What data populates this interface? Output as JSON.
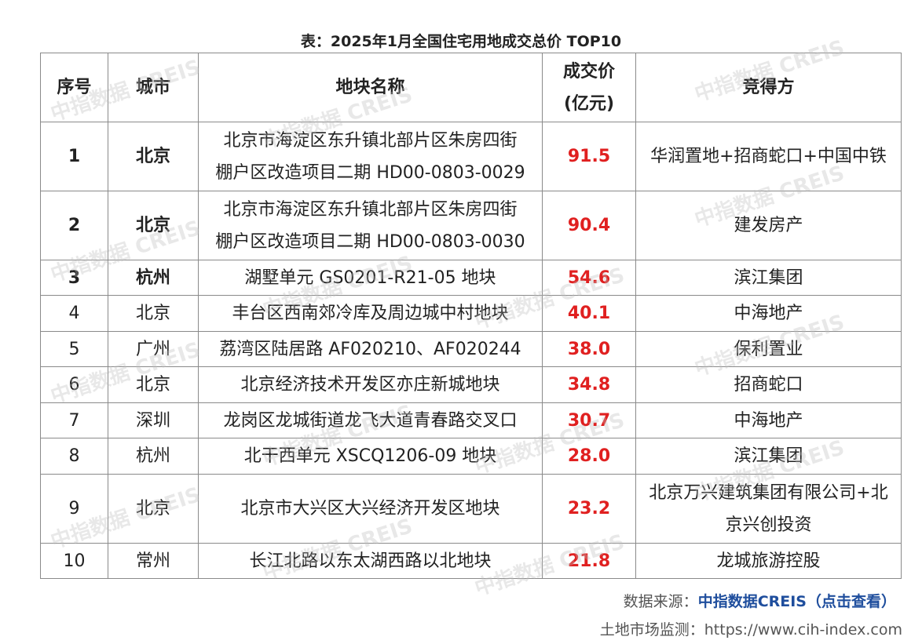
{
  "title": "表：2025年1月全国住宅用地成交总价 TOP10",
  "headers": {
    "no": "序号",
    "city": "城市",
    "name": "地块名称",
    "price_line1": "成交价",
    "price_line2": "(亿元)",
    "buyer": "竞得方"
  },
  "rows": [
    {
      "no": "1",
      "city": "北京",
      "name_line1": "北京市海淀区东升镇北部片区朱房四街",
      "name_line2": "棚户区改造项目二期 HD00-0803-0029",
      "price": "91.5",
      "buyer_line1": "华润置地+招商蛇口+中国中铁",
      "buyer_line2": ""
    },
    {
      "no": "2",
      "city": "北京",
      "name_line1": "北京市海淀区东升镇北部片区朱房四街",
      "name_line2": "棚户区改造项目二期 HD00-0803-0030",
      "price": "90.4",
      "buyer_line1": "建发房产",
      "buyer_line2": ""
    },
    {
      "no": "3",
      "city": "杭州",
      "name_line1": "湖墅单元 GS0201-R21-05 地块",
      "name_line2": "",
      "price": "54.6",
      "buyer_line1": "滨江集团",
      "buyer_line2": ""
    },
    {
      "no": "4",
      "city": "北京",
      "name_line1": "丰台区西南郊冷库及周边城中村地块",
      "name_line2": "",
      "price": "40.1",
      "buyer_line1": "中海地产",
      "buyer_line2": ""
    },
    {
      "no": "5",
      "city": "广州",
      "name_line1": "荔湾区陆居路 AF020210、AF020244",
      "name_line2": "",
      "price": "38.0",
      "buyer_line1": "保利置业",
      "buyer_line2": ""
    },
    {
      "no": "6",
      "city": "北京",
      "name_line1": "北京经济技术开发区亦庄新城地块",
      "name_line2": "",
      "price": "34.8",
      "buyer_line1": "招商蛇口",
      "buyer_line2": ""
    },
    {
      "no": "7",
      "city": "深圳",
      "name_line1": "龙岗区龙城街道龙飞大道青春路交叉口",
      "name_line2": "",
      "price": "30.7",
      "buyer_line1": "中海地产",
      "buyer_line2": ""
    },
    {
      "no": "8",
      "city": "杭州",
      "name_line1": "北干西单元 XSCQ1206-09 地块",
      "name_line2": "",
      "price": "28.0",
      "buyer_line1": "滨江集团",
      "buyer_line2": ""
    },
    {
      "no": "9",
      "city": "北京",
      "name_line1": "北京市大兴区大兴经济开发区地块",
      "name_line2": "",
      "price": "23.2",
      "buyer_line1": "北京万兴建筑集团有限公司+北",
      "buyer_line2": "京兴创投资"
    },
    {
      "no": "10",
      "city": "常州",
      "name_line1": "长江北路以东太湖西路以北地块",
      "name_line2": "",
      "price": "21.8",
      "buyer_line1": "龙城旅游控股",
      "buyer_line2": ""
    }
  ],
  "source": {
    "label": "数据来源：",
    "link": "中指数据CREIS（点击查看）"
  },
  "monitor": {
    "label": "土地市场监测：",
    "url": "https://www.cih-index.com"
  },
  "watermark": "中指数据 CREIS"
}
